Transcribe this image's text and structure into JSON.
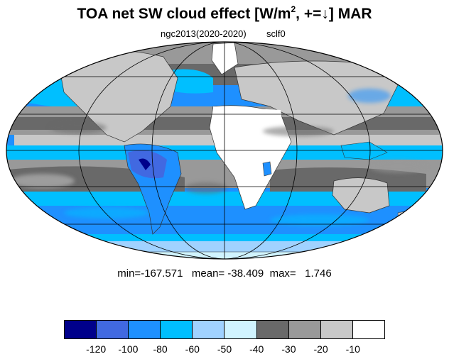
{
  "title": {
    "prefix": "TOA net SW cloud effect [W/m",
    "sup": "2",
    "suffix": ", +=↓]  MAR"
  },
  "subtitle": {
    "left": "ngc2013(2020-2020)",
    "right": "sclf0"
  },
  "stats": {
    "text": "min=-167.571   mean= -38.409  max=   1.746",
    "min": -167.571,
    "mean": -38.409,
    "max": 1.746
  },
  "colorbar": {
    "colors": [
      "#00008b",
      "#4169e1",
      "#1e90ff",
      "#00bfff",
      "#a0d2ff",
      "#d0f4ff",
      "#696969",
      "#999999",
      "#c8c8c8",
      "#ffffff"
    ],
    "labels": [
      "-120",
      "-100",
      "-80",
      "-60",
      "-50",
      "-40",
      "-30",
      "-20",
      "-10"
    ]
  },
  "map": {
    "projection": "mollweide",
    "ocean_color": "#1e90ff",
    "grid_color": "#000000"
  }
}
